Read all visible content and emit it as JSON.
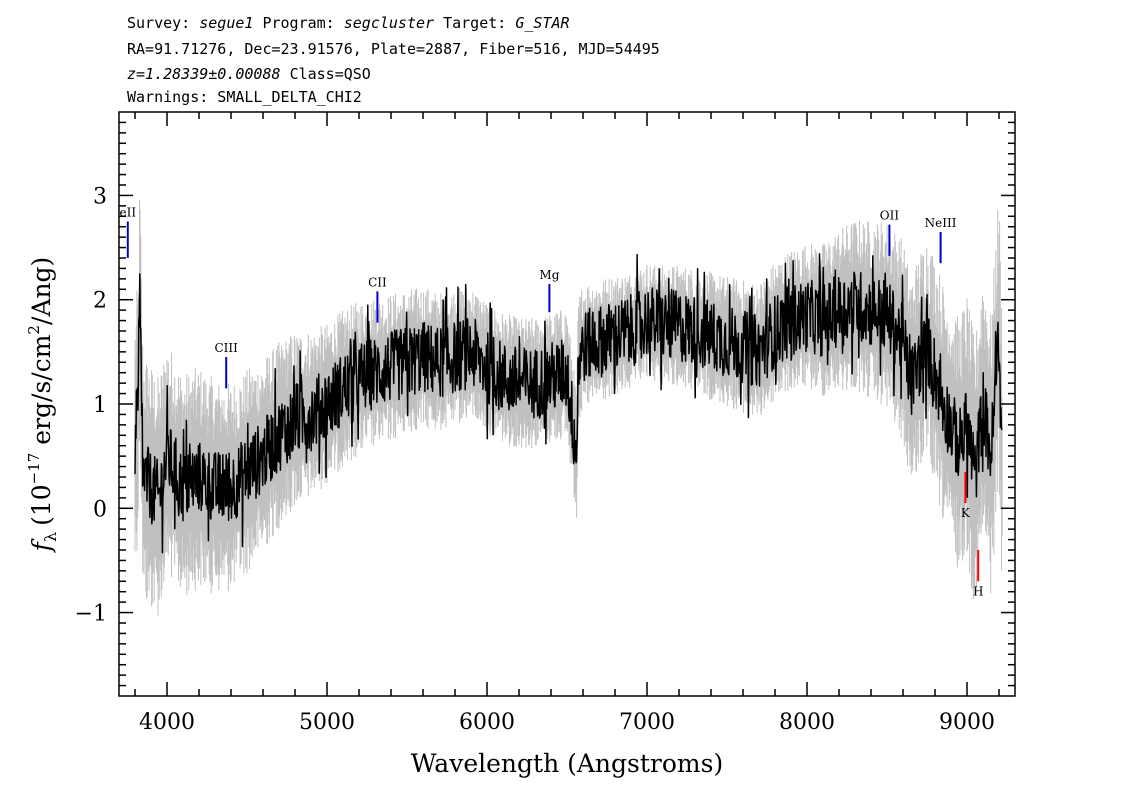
{
  "header": {
    "line1": {
      "survey_label": "Survey:",
      "survey": "segue1",
      "program_label": "Program:",
      "program": "segcluster",
      "target_label": "Target:",
      "target": "G_STAR"
    },
    "line2": "RA=91.71276, Dec=23.91576, Plate=2887, Fiber=516, MJD=54495",
    "line3": {
      "redshift": "z=1.28339±0.00088",
      "class": "Class=QSO"
    },
    "line4": "Warnings: SMALL_DELTA_CHI2"
  },
  "chart_data": {
    "type": "line",
    "xlabel": "Wavelength (Angstroms)",
    "ylabel": "f_λ (10^-17 erg/s/cm^2/Ang)",
    "ylabel_parts": {
      "symbol": "f",
      "subscript": "λ",
      "open": "(10",
      "exponent": "−17",
      "mid": " erg/s/cm",
      "exponent2": "2",
      "close": "/Ang)"
    },
    "xlim": [
      3700,
      9300
    ],
    "ylim": [
      -1.8,
      3.8
    ],
    "xticks": [
      4000,
      5000,
      6000,
      7000,
      8000,
      9000
    ],
    "xtick_labels": [
      "4000",
      "5000",
      "6000",
      "7000",
      "8000",
      "9000"
    ],
    "yticks": [
      -1,
      0,
      1,
      2,
      3
    ],
    "ytick_labels": [
      "−1",
      "0",
      "1",
      "2",
      "3"
    ],
    "grid": false,
    "series": [
      {
        "role": "flux",
        "color": "#000000",
        "x": [
          3800,
          3820,
          3830,
          3850,
          3900,
          3950,
          4000,
          4100,
          4200,
          4300,
          4400,
          4500,
          4600,
          4700,
          4800,
          4900,
          5000,
          5100,
          5200,
          5300,
          5400,
          5500,
          5600,
          5700,
          5800,
          5900,
          6000,
          6100,
          6200,
          6300,
          6400,
          6500,
          6560,
          6570,
          6600,
          6700,
          6800,
          6900,
          7000,
          7100,
          7200,
          7300,
          7400,
          7500,
          7600,
          7700,
          7800,
          7900,
          8000,
          8100,
          8200,
          8300,
          8400,
          8500,
          8600,
          8650,
          8700,
          8750,
          8800,
          8850,
          8900,
          8950,
          9000,
          9050,
          9100,
          9150,
          9200,
          9220
        ],
        "y": [
          0.6,
          1.0,
          2.0,
          0.3,
          0.2,
          0.1,
          0.5,
          0.2,
          0.3,
          0.2,
          0.2,
          0.35,
          0.5,
          0.7,
          0.85,
          0.9,
          1.0,
          1.15,
          1.25,
          1.3,
          1.35,
          1.4,
          1.45,
          1.4,
          1.45,
          1.5,
          1.35,
          1.25,
          1.2,
          1.2,
          1.25,
          1.3,
          0.5,
          1.4,
          1.55,
          1.6,
          1.65,
          1.7,
          1.8,
          1.75,
          1.75,
          1.7,
          1.65,
          1.6,
          1.55,
          1.5,
          1.7,
          1.8,
          1.85,
          1.8,
          1.9,
          1.95,
          1.9,
          1.85,
          1.6,
          1.2,
          1.4,
          1.55,
          1.3,
          1.0,
          0.8,
          0.6,
          0.8,
          0.3,
          1.0,
          0.5,
          1.7,
          0.4
        ],
        "noise": 0.35
      },
      {
        "role": "uncertainty",
        "color": "#c0c0c0",
        "x": [
          3800,
          4000,
          4500,
          5000,
          5500,
          6000,
          6500,
          7000,
          7500,
          8000,
          8500,
          8800,
          9000,
          9200
        ],
        "y": [
          0.9,
          0.8,
          0.7,
          0.55,
          0.5,
          0.45,
          0.45,
          0.4,
          0.45,
          0.5,
          0.65,
          0.8,
          0.9,
          1.0
        ]
      }
    ],
    "annotations": [
      {
        "label": "eII",
        "x": 3755,
        "y": 2.6,
        "color": "#0000cc",
        "y_bottom": 2.4,
        "y_top": 2.75
      },
      {
        "label": "CIII",
        "x": 4370,
        "y": 1.35,
        "color": "#0000cc",
        "y_bottom": 1.15,
        "y_top": 1.45
      },
      {
        "label": "CII",
        "x": 5315,
        "y": 1.95,
        "color": "#0000cc",
        "y_bottom": 1.78,
        "y_top": 2.08
      },
      {
        "label": "Mg",
        "x": 6390,
        "y": 2.05,
        "color": "#0000cc",
        "y_bottom": 1.88,
        "y_top": 2.15
      },
      {
        "label": "OII",
        "x": 8515,
        "y": 2.6,
        "color": "#0000cc",
        "y_bottom": 2.42,
        "y_top": 2.72
      },
      {
        "label": "NeIII",
        "x": 8835,
        "y": 2.5,
        "color": "#0000cc",
        "y_bottom": 2.35,
        "y_top": 2.65
      },
      {
        "label": "K",
        "x": 8990,
        "y": 0.2,
        "color": "#ff0000",
        "y_bottom": 0.05,
        "y_top": 0.35,
        "label_below": true
      },
      {
        "label": "H",
        "x": 9070,
        "y": -0.55,
        "color": "#ff0000",
        "y_bottom": -0.7,
        "y_top": -0.4,
        "label_below": true
      }
    ]
  }
}
